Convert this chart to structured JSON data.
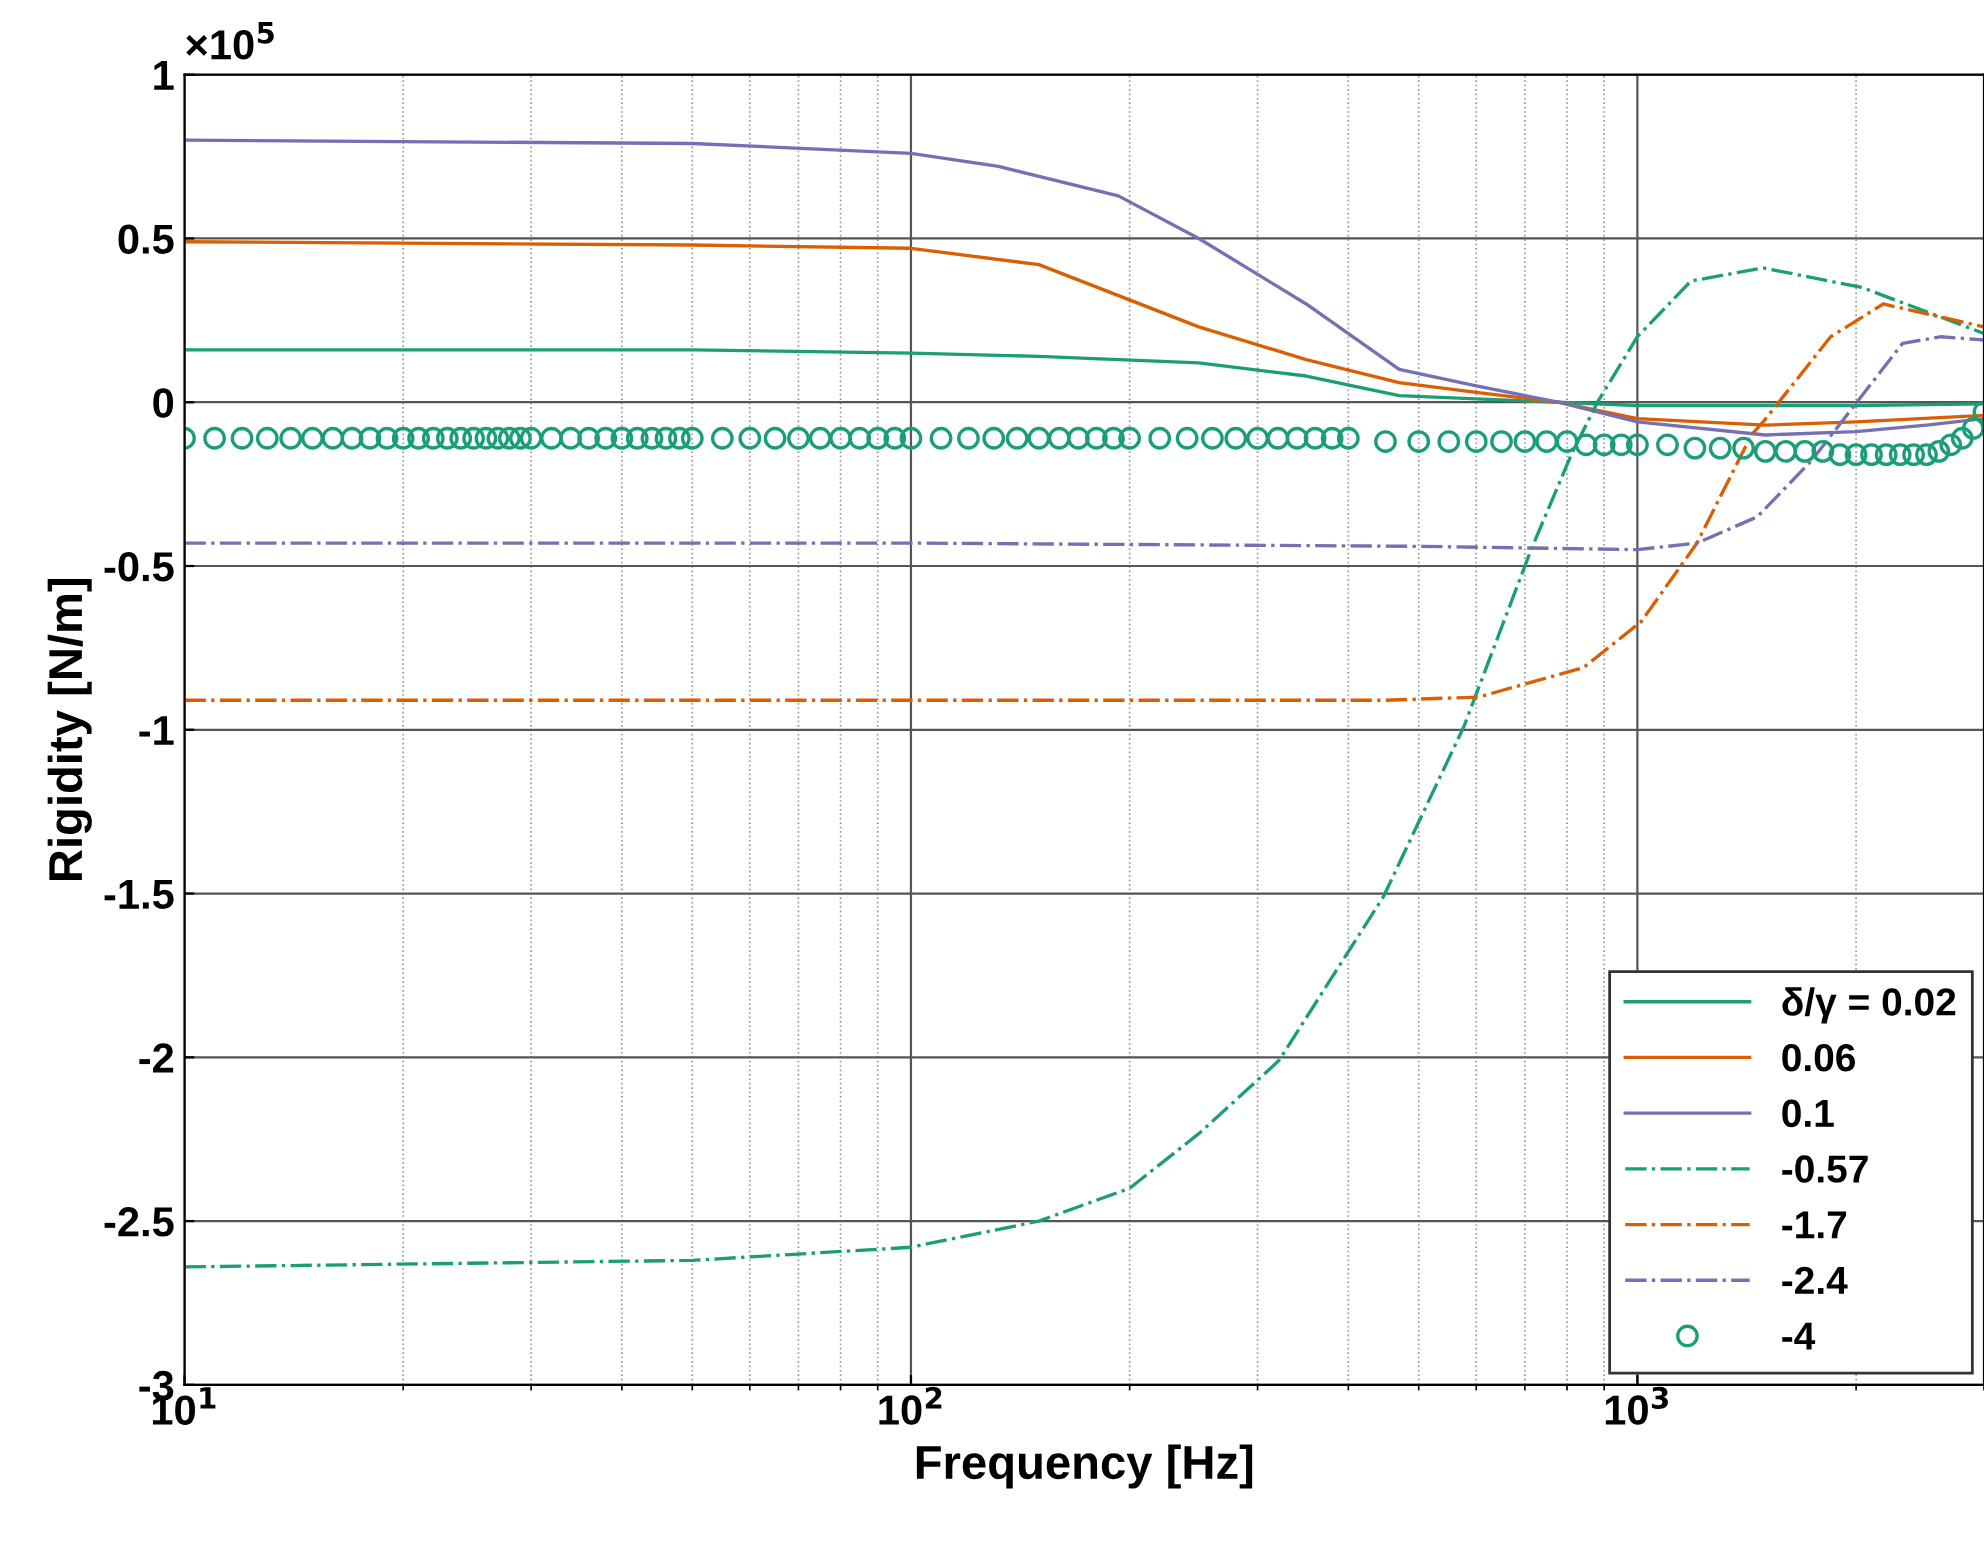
{
  "chart_data": {
    "type": "line",
    "xlabel": "Frequency [Hz]",
    "ylabel": "Rigidity [N/m]",
    "annotations": [
      "×10$^{5}$"
    ],
    "log": "x",
    "xlim": [
      10,
      3000
    ],
    "xticks": [
      {
        "value": 10,
        "label": "10$^{1}$"
      },
      {
        "value": 100,
        "label": "10$^{2}$"
      },
      {
        "value": 1000,
        "label": "10$^{3}$"
      }
    ],
    "ylim": [
      -3,
      1
    ],
    "yticks": [
      -3,
      -2.5,
      -2,
      -1.5,
      -1,
      -0.5,
      0,
      0.5,
      1
    ],
    "grid": true,
    "legend": "bottom right",
    "series": [
      {
        "name": "δ/γ = 0.02",
        "color": "#1b9e77",
        "line_style": "solid",
        "x": [
          10,
          50,
          100,
          150,
          249,
          350,
          470,
          600,
          778,
          1000,
          1500,
          2000,
          3000
        ],
        "values": [
          0.16,
          0.16,
          0.15,
          0.14,
          0.12,
          0.08,
          0.02,
          0.01,
          0,
          -0.01,
          -0.01,
          -0.01,
          -0.005
        ]
      },
      {
        "name": "0.06",
        "color": "#d95f02",
        "line_style": "solid",
        "x": [
          10,
          50,
          100,
          150,
          249,
          350,
          470,
          600,
          778,
          1000,
          1500,
          2000,
          3000
        ],
        "values": [
          0.49,
          0.48,
          0.47,
          0.42,
          0.23,
          0.13,
          0.06,
          0.03,
          0,
          -0.05,
          -0.07,
          -0.06,
          -0.04
        ]
      },
      {
        "name": "0.1",
        "color": "#7570b3",
        "line_style": "solid",
        "x": [
          10,
          50,
          100,
          132,
          193,
          249,
          350,
          470,
          600,
          778,
          1000,
          1500,
          2000,
          2500,
          3000
        ],
        "values": [
          0.8,
          0.79,
          0.76,
          0.72,
          0.63,
          0.5,
          0.3,
          0.1,
          0.05,
          0,
          -0.06,
          -0.1,
          -0.09,
          -0.07,
          -0.05
        ]
      },
      {
        "name": "-0.57",
        "color": "#1b9e77",
        "line_style": "dashdot",
        "x": [
          10,
          50,
          100,
          150,
          200,
          250,
          321,
          447,
          577,
          714,
          811,
          881,
          1000,
          1185,
          1490,
          2040,
          3000
        ],
        "values": [
          -2.64,
          -2.62,
          -2.58,
          -2.5,
          -2.4,
          -2.23,
          -2.01,
          -1.51,
          -0.99,
          -0.45,
          -0.16,
          0,
          0.2,
          0.37,
          0.41,
          0.35,
          0.21
        ]
      },
      {
        "name": "-1.7",
        "color": "#d95f02",
        "line_style": "dashdot",
        "x": [
          10,
          100,
          300,
          450,
          605,
          843,
          1012,
          1208,
          1435,
          1490,
          1845,
          2180,
          3000
        ],
        "values": [
          -0.91,
          -0.91,
          -0.91,
          -0.91,
          -0.9,
          -0.81,
          -0.67,
          -0.43,
          -0.1,
          -0.06,
          0.2,
          0.3,
          0.23
        ]
      },
      {
        "name": "-2.4",
        "color": "#7570b3",
        "line_style": "dashdot",
        "x": [
          10,
          100,
          500,
          1000,
          1208,
          1462,
          1734,
          2005,
          2318,
          2620,
          3000
        ],
        "values": [
          -0.43,
          -0.43,
          -0.44,
          -0.45,
          -0.43,
          -0.35,
          -0.18,
          0,
          0.18,
          0.2,
          0.19
        ]
      },
      {
        "name": "-4",
        "type": "scatter",
        "marker": "circle",
        "color": "#1b9e77",
        "x": [
          10,
          11,
          12,
          13,
          14,
          15,
          16,
          17,
          18,
          19,
          20,
          21,
          22,
          23,
          24,
          25,
          26,
          27,
          28,
          29,
          30,
          32,
          34,
          36,
          38,
          40,
          42,
          44,
          46,
          48,
          50,
          55,
          60,
          65,
          70,
          75,
          80,
          85,
          90,
          95,
          100,
          110,
          120,
          130,
          140,
          150,
          160,
          170,
          180,
          190,
          200,
          220,
          240,
          260,
          280,
          300,
          320,
          340,
          360,
          380,
          400,
          450,
          500,
          550,
          600,
          650,
          700,
          750,
          800,
          850,
          900,
          950,
          1000,
          1100,
          1200,
          1300,
          1400,
          1500,
          1600,
          1700,
          1800,
          1900,
          2000,
          2100,
          2200,
          2300,
          2400,
          2500,
          2600,
          2700,
          2800,
          2900,
          3000
        ],
        "values": [
          -0.11,
          -0.11,
          -0.11,
          -0.11,
          -0.11,
          -0.11,
          -0.11,
          -0.11,
          -0.11,
          -0.11,
          -0.11,
          -0.11,
          -0.11,
          -0.11,
          -0.11,
          -0.11,
          -0.11,
          -0.11,
          -0.11,
          -0.11,
          -0.11,
          -0.11,
          -0.11,
          -0.11,
          -0.11,
          -0.11,
          -0.11,
          -0.11,
          -0.11,
          -0.11,
          -0.11,
          -0.11,
          -0.11,
          -0.11,
          -0.11,
          -0.11,
          -0.11,
          -0.11,
          -0.11,
          -0.11,
          -0.11,
          -0.11,
          -0.11,
          -0.11,
          -0.11,
          -0.11,
          -0.11,
          -0.11,
          -0.11,
          -0.11,
          -0.11,
          -0.11,
          -0.11,
          -0.11,
          -0.11,
          -0.11,
          -0.11,
          -0.11,
          -0.11,
          -0.11,
          -0.11,
          -0.12,
          -0.12,
          -0.12,
          -0.12,
          -0.12,
          -0.12,
          -0.12,
          -0.12,
          -0.13,
          -0.13,
          -0.13,
          -0.13,
          -0.13,
          -0.14,
          -0.14,
          -0.14,
          -0.15,
          -0.15,
          -0.15,
          -0.15,
          -0.16,
          -0.16,
          -0.16,
          -0.16,
          -0.16,
          -0.16,
          -0.16,
          -0.15,
          -0.13,
          -0.11,
          -0.08,
          -0.03
        ]
      }
    ]
  }
}
